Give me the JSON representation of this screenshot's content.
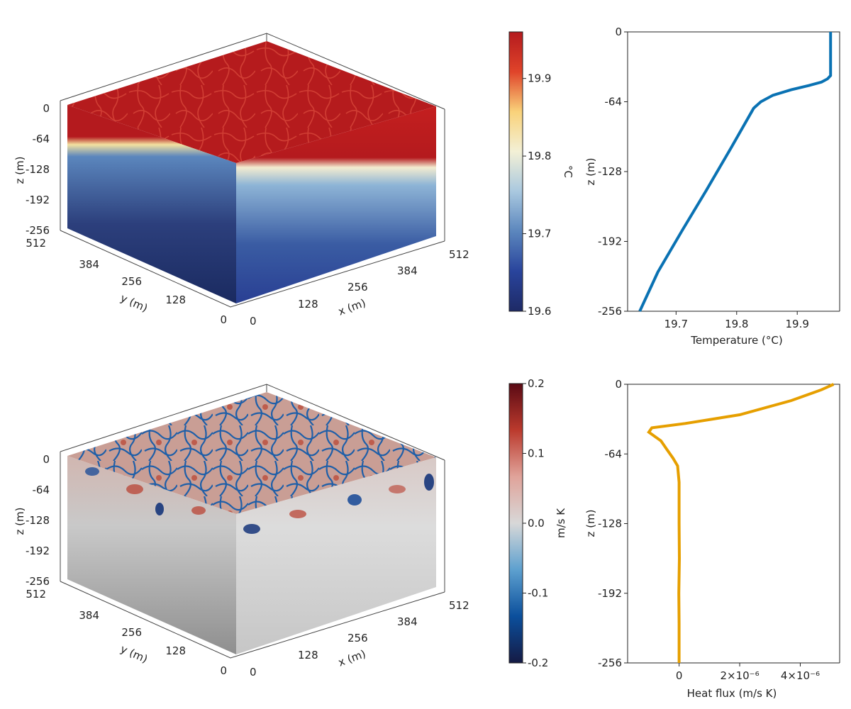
{
  "colors": {
    "temperature_line": "#0a72b3",
    "heat_flux_line": "#e69f00",
    "axis": "#222222",
    "temp_colormap": [
      "#1e2a66",
      "#29449c",
      "#5b86bd",
      "#a9c8df",
      "#f3f0d6",
      "#f9d27a",
      "#e0442a",
      "#b41a1e"
    ],
    "flux_colormap": [
      "#151a44",
      "#0b4f9c",
      "#5da0cf",
      "#d8d8d8",
      "#e0a39a",
      "#bb3a2d",
      "#5a0a14"
    ]
  },
  "chart_data": [
    {
      "id": "temperature-volume",
      "type": "heatmap",
      "view": "3d-box",
      "xlabel": "x (m)",
      "ylabel": "y (m)",
      "zlabel": "z (m)",
      "x_ticks": [
        "0",
        "128",
        "256",
        "384",
        "512"
      ],
      "y_ticks": [
        "0",
        "128",
        "256",
        "384",
        "512"
      ],
      "z_ticks": [
        "0",
        "-64",
        "-128",
        "-192",
        "-256"
      ],
      "xlim": [
        0,
        512
      ],
      "ylim": [
        0,
        512
      ],
      "zlim": [
        -256,
        0
      ],
      "colorbar": {
        "label": "°C",
        "range": [
          19.6,
          19.96
        ],
        "ticks": [
          "19.9",
          "19.8",
          "19.7",
          "19.6"
        ],
        "tick_values": [
          19.9,
          19.8,
          19.7,
          19.6
        ]
      }
    },
    {
      "id": "temperature-profile",
      "type": "line",
      "xlabel": "Temperature (°C)",
      "ylabel": "z (m)",
      "xlim": [
        19.62,
        19.97
      ],
      "ylim": [
        -256,
        0
      ],
      "x_ticks": [
        "19.7",
        "19.8",
        "19.9"
      ],
      "x_tick_values": [
        19.7,
        19.8,
        19.9
      ],
      "y_ticks": [
        "0",
        "-64",
        "-128",
        "-192",
        "-256"
      ],
      "y_tick_values": [
        0,
        -64,
        -128,
        -192,
        -256
      ],
      "series": [
        {
          "name": "Temperature",
          "x": [
            19.955,
            19.955,
            19.955,
            19.955,
            19.95,
            19.94,
            19.92,
            19.89,
            19.86,
            19.84,
            19.828,
            19.79,
            19.75,
            19.71,
            19.67,
            19.64
          ],
          "y": [
            0,
            -20,
            -35,
            -40,
            -43,
            -46,
            -49,
            -53,
            -58,
            -64,
            -70,
            -107,
            -145,
            -182,
            -220,
            -256
          ]
        }
      ]
    },
    {
      "id": "heat-flux-volume",
      "type": "heatmap",
      "view": "3d-box",
      "xlabel": "x (m)",
      "ylabel": "y (m)",
      "zlabel": "z (m)",
      "x_ticks": [
        "0",
        "128",
        "256",
        "384",
        "512"
      ],
      "y_ticks": [
        "0",
        "128",
        "256",
        "384",
        "512"
      ],
      "z_ticks": [
        "0",
        "-64",
        "-128",
        "-192",
        "-256"
      ],
      "xlim": [
        0,
        512
      ],
      "ylim": [
        0,
        512
      ],
      "zlim": [
        -256,
        0
      ],
      "colorbar": {
        "label": "m/s K",
        "range": [
          -0.2,
          0.2
        ],
        "ticks": [
          "0.2",
          "0.1",
          "0.0",
          "-0.1",
          "-0.2"
        ],
        "tick_values": [
          0.2,
          0.1,
          0.0,
          -0.1,
          -0.2
        ]
      }
    },
    {
      "id": "heat-flux-profile",
      "type": "line",
      "xlabel": "Heat flux (m/s K)",
      "ylabel": "z (m)",
      "xlim": [
        -1.7e-06,
        5.3e-06
      ],
      "ylim": [
        -256,
        0
      ],
      "x_ticks": [
        "0",
        "2×10⁻⁶",
        "4×10⁻⁶"
      ],
      "x_tick_values": [
        0,
        2e-06,
        4e-06
      ],
      "y_ticks": [
        "0",
        "-64",
        "-128",
        "-192",
        "-256"
      ],
      "y_tick_values": [
        0,
        -64,
        -128,
        -192,
        -256
      ],
      "series": [
        {
          "name": "Heat flux",
          "x": [
            5.1e-06,
            4.7e-06,
            3.7e-06,
            2e-06,
            2e-07,
            -9e-07,
            -1e-06,
            -6e-07,
            -4e-07,
            -2e-07,
            -5e-08,
            0,
            0,
            1e-08,
            -1e-08,
            0,
            0
          ],
          "y": [
            0,
            -5,
            -15,
            -28,
            -36,
            -40,
            -44,
            -52,
            -60,
            -68,
            -75,
            -90,
            -128,
            -160,
            -192,
            -220,
            -256
          ]
        }
      ]
    }
  ]
}
